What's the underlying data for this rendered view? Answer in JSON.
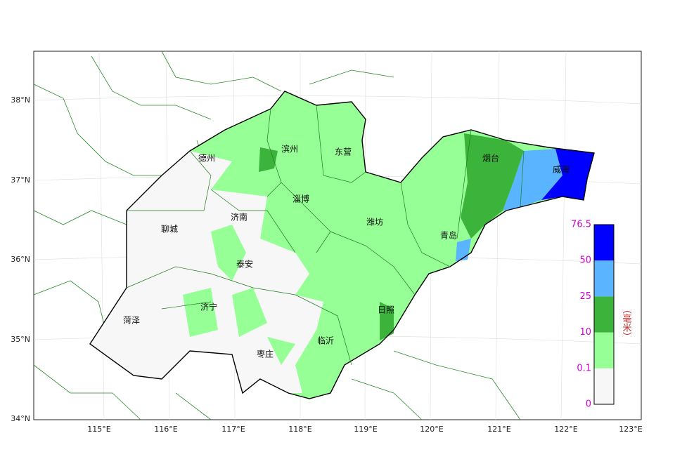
{
  "map": {
    "cities": [
      {
        "label": "德州"
      },
      {
        "label": "滨州"
      },
      {
        "label": "东营"
      },
      {
        "label": "烟台"
      },
      {
        "label": "威海"
      },
      {
        "label": "淄博"
      },
      {
        "label": "济南"
      },
      {
        "label": "聊城"
      },
      {
        "label": "潍坊"
      },
      {
        "label": "青岛"
      },
      {
        "label": "泰安"
      },
      {
        "label": "济宁"
      },
      {
        "label": "菏泽"
      },
      {
        "label": "日照"
      },
      {
        "label": "临沂"
      },
      {
        "label": "枣庄"
      }
    ],
    "lon_labels": [
      "115°E",
      "116°E",
      "117°E",
      "118°E",
      "119°E",
      "120°E",
      "121°E",
      "122°E",
      "123°E"
    ],
    "lat_labels": [
      "38°N",
      "37°N",
      "36°N",
      "35°N",
      "34°N"
    ],
    "legend": {
      "title": "（毫米）",
      "labels": [
        "0",
        "0.1",
        "10",
        "25",
        "50",
        "76.5"
      ],
      "colors": [
        "#f7f7f7",
        "#96ff96",
        "#3cb43c",
        "#5ab4ff",
        "#0000fe"
      ]
    }
  }
}
